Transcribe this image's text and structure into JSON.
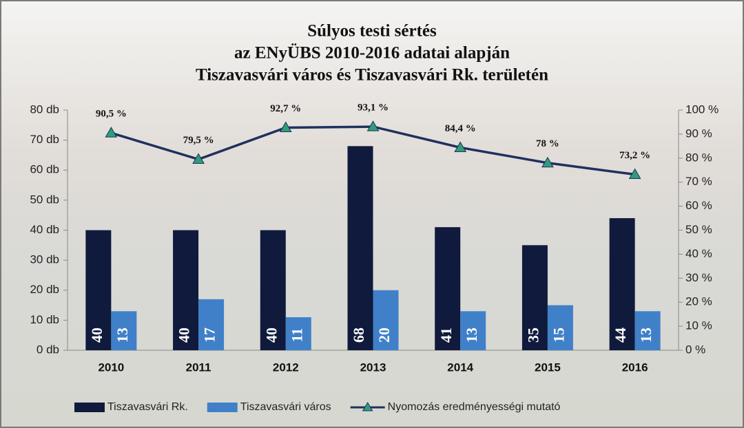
{
  "chart_data": {
    "type": "bar",
    "title": [
      "Súlyos testi sértés",
      "az ENyÜBS  2010-2016 adatai alapján",
      "Tiszavasvári város és Tiszavasvári Rk. területén"
    ],
    "categories": [
      "2010",
      "2011",
      "2012",
      "2013",
      "2014",
      "2015",
      "2016"
    ],
    "series": [
      {
        "name": "Tiszavasvári Rk.",
        "color": "#101a3c",
        "values": [
          40,
          40,
          40,
          68,
          41,
          35,
          44
        ]
      },
      {
        "name": "Tiszavasvári város",
        "color": "#4080c8",
        "values": [
          13,
          17,
          11,
          20,
          13,
          15,
          13
        ]
      },
      {
        "name": "Nyomozás eredményességi mutató",
        "type": "line",
        "axis": "y2",
        "color": "#1f3060",
        "marker_color": "#2e9e78",
        "values": [
          90.5,
          79.5,
          92.7,
          93.1,
          84.4,
          78,
          73.2
        ],
        "value_labels": [
          "90,5 %",
          "79,5 %",
          "92,7 %",
          "93,1 %",
          "84,4 %",
          "78 %",
          "73,2 %"
        ]
      }
    ],
    "ylim": [
      0,
      80
    ],
    "yticks": [
      {
        "value": 0,
        "label": "0 db"
      },
      {
        "value": 10,
        "label": "10 db"
      },
      {
        "value": 20,
        "label": "20 db"
      },
      {
        "value": 30,
        "label": "30 db"
      },
      {
        "value": 40,
        "label": "40 db"
      },
      {
        "value": 50,
        "label": "50 db"
      },
      {
        "value": 60,
        "label": "60 db"
      },
      {
        "value": 70,
        "label": "70 db"
      },
      {
        "value": 80,
        "label": "80 db"
      }
    ],
    "y2lim": [
      0,
      100
    ],
    "y2ticks": [
      {
        "value": 0,
        "label": "0 %"
      },
      {
        "value": 10,
        "label": "10 %"
      },
      {
        "value": 20,
        "label": "20 %"
      },
      {
        "value": 30,
        "label": "30 %"
      },
      {
        "value": 40,
        "label": "40 %"
      },
      {
        "value": 50,
        "label": "50 %"
      },
      {
        "value": 60,
        "label": "60 %"
      },
      {
        "value": 70,
        "label": "70 %"
      },
      {
        "value": 80,
        "label": "80 %"
      },
      {
        "value": 90,
        "label": "90 %"
      },
      {
        "value": 100,
        "label": "100 %"
      }
    ],
    "legend": "bottom"
  }
}
